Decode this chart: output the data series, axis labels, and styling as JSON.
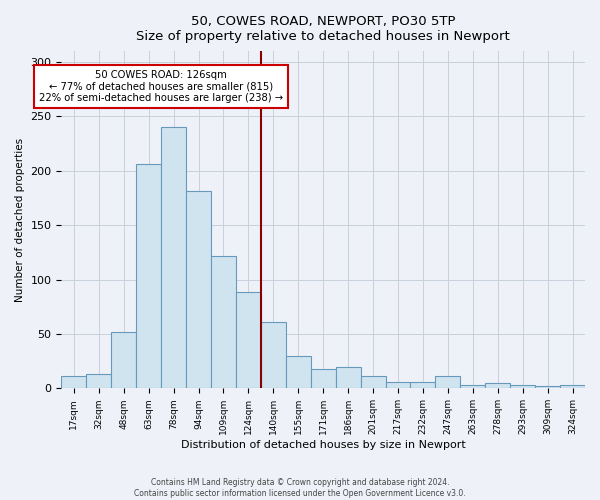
{
  "title": "50, COWES ROAD, NEWPORT, PO30 5TP",
  "subtitle": "Size of property relative to detached houses in Newport",
  "xlabel": "Distribution of detached houses by size in Newport",
  "ylabel": "Number of detached properties",
  "bar_labels": [
    "17sqm",
    "32sqm",
    "48sqm",
    "63sqm",
    "78sqm",
    "94sqm",
    "109sqm",
    "124sqm",
    "140sqm",
    "155sqm",
    "171sqm",
    "186sqm",
    "201sqm",
    "217sqm",
    "232sqm",
    "247sqm",
    "263sqm",
    "278sqm",
    "293sqm",
    "309sqm",
    "324sqm"
  ],
  "bar_values": [
    11,
    13,
    52,
    206,
    240,
    181,
    122,
    89,
    61,
    30,
    18,
    20,
    11,
    6,
    6,
    11,
    3,
    5,
    3,
    2,
    3
  ],
  "bar_color": "#d0e4f0",
  "bar_edge_color": "#6699bb",
  "vline_x": 7.5,
  "vline_color": "#880000",
  "annotation_title": "50 COWES ROAD: 126sqm",
  "annotation_line1": "← 77% of detached houses are smaller (815)",
  "annotation_line2": "22% of semi-detached houses are larger (238) →",
  "annotation_box_color": "#ffffff",
  "annotation_box_edge": "#cc0000",
  "ylim": [
    0,
    310
  ],
  "yticks": [
    0,
    50,
    100,
    150,
    200,
    250,
    300
  ],
  "footer1": "Contains HM Land Registry data © Crown copyright and database right 2024.",
  "footer2": "Contains public sector information licensed under the Open Government Licence v3.0.",
  "bg_color": "#eef2f8",
  "plot_bg_color": "#eef2f8",
  "grid_color": "#c8d0dc"
}
